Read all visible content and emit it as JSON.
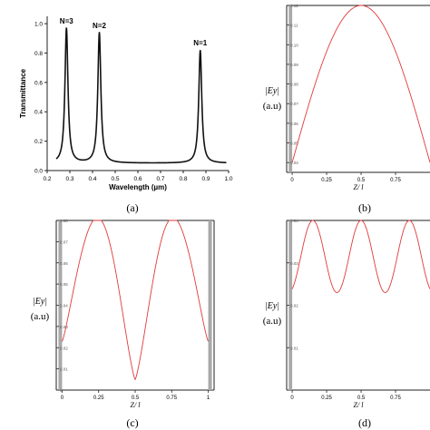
{
  "figure": {
    "panel_captions": [
      "(a)",
      "(b)",
      "(c)",
      "(d)"
    ]
  },
  "colors": {
    "transmittance_line": "#111111",
    "field_line": "#e03a3a",
    "metal_band": "#a9a9a9",
    "axis": "#222222"
  },
  "chart_data": [
    {
      "panel": "(a)",
      "type": "line",
      "xlabel": "Wavelength (µm)",
      "ylabel": "Transmittance",
      "xlim": [
        0.2,
        1.0
      ],
      "ylim": [
        0.0,
        1.05
      ],
      "xticks": [
        "0.2",
        "0.3",
        "0.4",
        "0.5",
        "0.6",
        "0.7",
        "0.8",
        "0.9",
        "1.0"
      ],
      "yticks": [
        "0.0",
        "0.2",
        "0.4",
        "0.6",
        "0.8",
        "1.0"
      ],
      "resonances": [
        {
          "label": "N=3",
          "wavelength": 0.285,
          "peak": 0.97
        },
        {
          "label": "N=2",
          "wavelength": 0.43,
          "peak": 0.94
        },
        {
          "label": "N=1",
          "wavelength": 0.875,
          "peak": 0.82
        }
      ],
      "baseline": 0.05,
      "x_range": [
        0.24,
        0.99
      ]
    },
    {
      "panel": "(b)",
      "type": "line",
      "xlabel": "Z/ l",
      "ylabel_line1": "|Ey|",
      "ylabel_line2": "(a.u)",
      "xlim": [
        -0.04,
        1.0
      ],
      "ylim": [
        0.035,
        0.12
      ],
      "xticks": [
        "0",
        "0.25",
        "0.5",
        "0.75"
      ],
      "yticks": [
        "0.04",
        "0.05",
        "0.06",
        "0.07",
        "0.08",
        "0.09",
        "0.10",
        "0.11",
        "0.12"
      ],
      "metal_band": [
        -0.025,
        0
      ],
      "peaks": [
        0.5
      ],
      "peak_value": 0.12,
      "edge_value": 0.04
    },
    {
      "panel": "(c)",
      "type": "line",
      "xlabel": "Z/ l",
      "ylabel_line1": "|Ey|",
      "ylabel_line2": "(a.u)",
      "xlim": [
        -0.04,
        1.04
      ],
      "ylim": [
        0.0,
        0.08
      ],
      "xticks": [
        "0",
        "0.25",
        "0.5",
        "0.75",
        "1"
      ],
      "yticks": [
        "0",
        "0.01",
        "0.02",
        "0.03",
        "0.04",
        "0.05",
        "0.06",
        "0.07",
        "0.08"
      ],
      "metal_band_left": [
        -0.025,
        0
      ],
      "metal_band_right": [
        1.0,
        1.025
      ],
      "peaks": [
        0.25,
        0.75
      ],
      "min_value": 0.005,
      "peak_value": 0.08
    },
    {
      "panel": "(d)",
      "type": "line",
      "xlabel": "Z/ l",
      "ylabel_line1": "|Ey|",
      "ylabel_line2": "(a.u)",
      "xlim": [
        -0.04,
        1.0
      ],
      "ylim": [
        0.0,
        0.04
      ],
      "xticks": [
        "0",
        "0.25",
        "0.5",
        "0.75"
      ],
      "yticks": [
        "0.01",
        "0.02",
        "0.03",
        "0.04"
      ],
      "metal_band": [
        -0.025,
        0
      ],
      "peaks": [
        0.15,
        0.5,
        0.85
      ],
      "peak_value": 0.04,
      "min_value": 0.023
    }
  ]
}
